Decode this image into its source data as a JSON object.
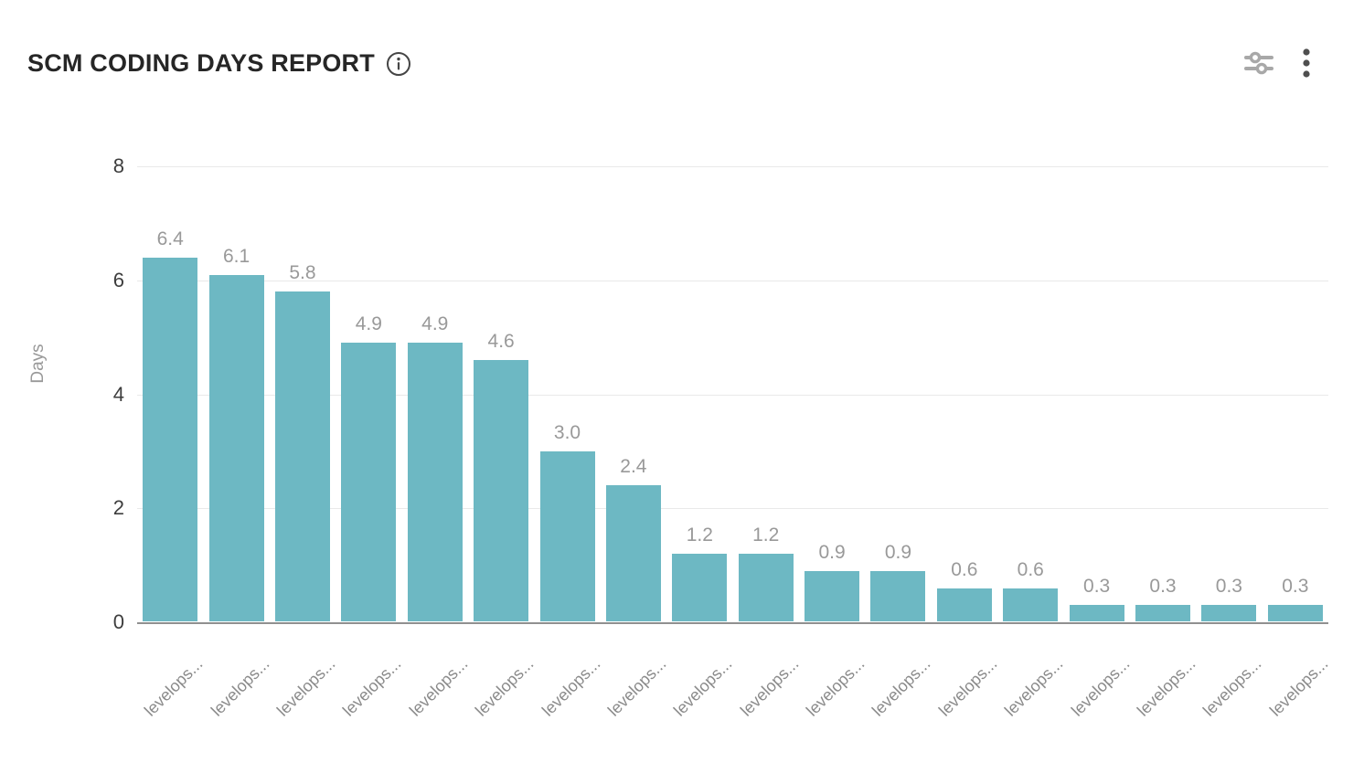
{
  "header": {
    "title": "SCM CODING DAYS REPORT",
    "icons": {
      "info": "info-circle-icon",
      "filters": "sliders-filter-icon",
      "menu": "kebab-menu-icon"
    }
  },
  "colors": {
    "bar": "#6DB8C3",
    "value_label": "#999999",
    "axis_tick": "#3d3d3d",
    "x_label": "#8a8a8a",
    "y_axis_title": "#999999",
    "gridline": "#e9e9e9",
    "baseline": "#909090",
    "title": "#262626",
    "sliders_icon": "#a8a8a8",
    "kebab_icon": "#4f4f4f",
    "info_icon": "#454545"
  },
  "chart_data": {
    "type": "bar",
    "title": "SCM CODING DAYS REPORT",
    "categories": [
      "levelops...",
      "levelops...",
      "levelops...",
      "levelops...",
      "levelops...",
      "levelops...",
      "levelops...",
      "levelops...",
      "levelops...",
      "levelops...",
      "levelops...",
      "levelops...",
      "levelops...",
      "levelops...",
      "levelops...",
      "levelops...",
      "levelops...",
      "levelops..."
    ],
    "values": [
      6.4,
      6.1,
      5.8,
      4.9,
      4.9,
      4.6,
      3.0,
      2.4,
      1.2,
      1.2,
      0.9,
      0.9,
      0.6,
      0.6,
      0.3,
      0.3,
      0.3,
      0.3
    ],
    "value_labels": [
      "6.4",
      "6.1",
      "5.8",
      "4.9",
      "4.9",
      "4.6",
      "3.0",
      "2.4",
      "1.2",
      "1.2",
      "0.9",
      "0.9",
      "0.6",
      "0.6",
      "0.3",
      "0.3",
      "0.3",
      "0.3"
    ],
    "xlabel": "",
    "ylabel": "Days",
    "ylim": [
      0,
      8
    ],
    "yticks": [
      0,
      2,
      4,
      6,
      8
    ],
    "grid": true,
    "legend": false,
    "bar_color": "#6DB8C3"
  }
}
